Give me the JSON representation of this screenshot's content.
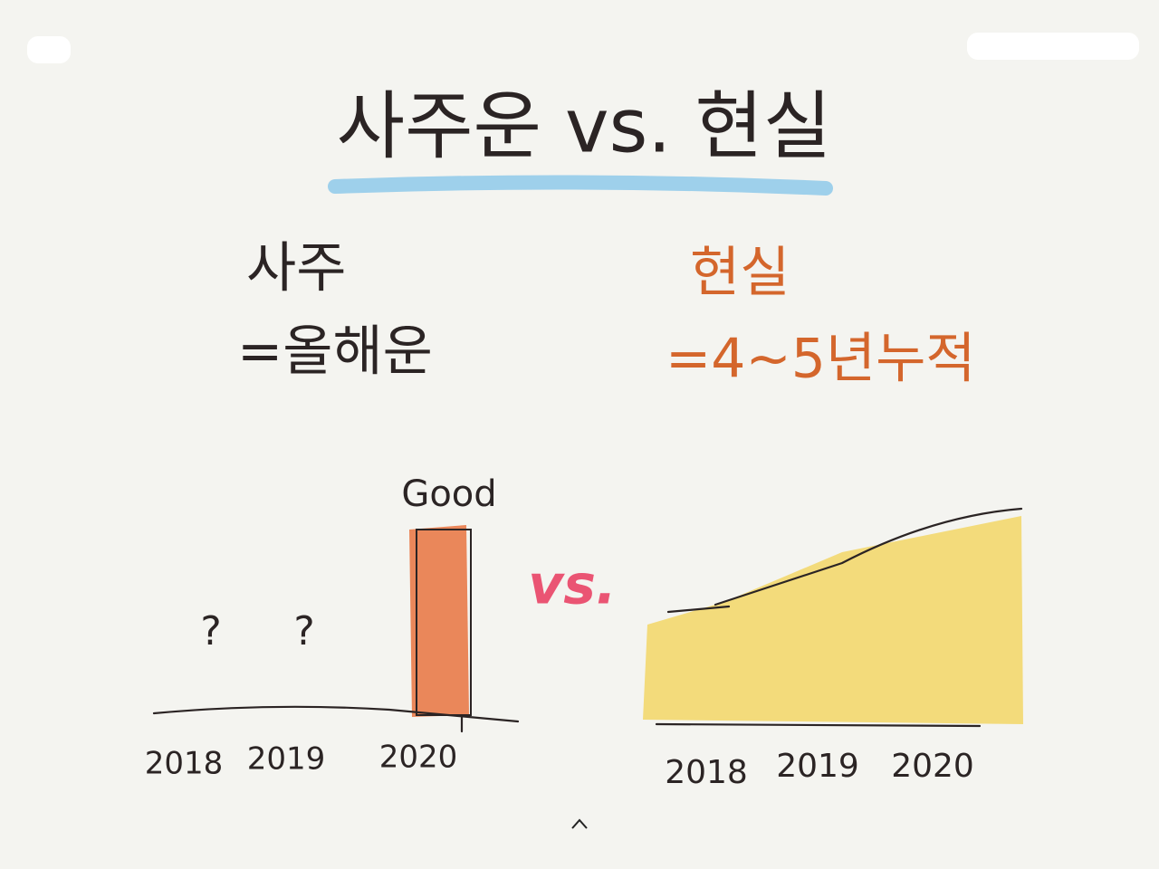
{
  "title": "사주운 vs. 현실",
  "left": {
    "heading": "사주",
    "subheading": "=올해운",
    "chart": {
      "labels": [
        "?",
        "?",
        "Good"
      ],
      "years": [
        "2018",
        "2019",
        "2020"
      ]
    }
  },
  "middle": "vs.",
  "right": {
    "heading": "현실",
    "subheading": "=4~5년누적",
    "chart": {
      "years": [
        "2018",
        "2019",
        "2020"
      ]
    }
  }
}
